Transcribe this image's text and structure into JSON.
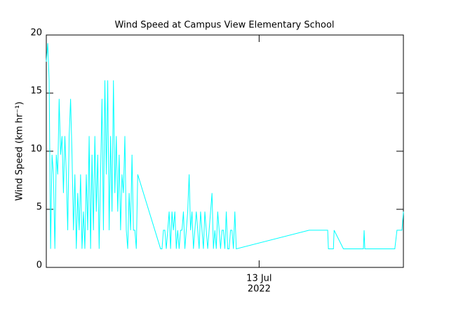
{
  "chart_data": {
    "type": "line",
    "title": "Wind Speed at Campus View Elementary School",
    "y_label": "Wind Speed (km hr⁻¹)",
    "color": "#00ffff",
    "xlim": [
      11.51,
      14.01
    ],
    "xticks": [
      {
        "value": 13,
        "label": [
          "13 Jul",
          "2022"
        ]
      }
    ],
    "ylim": [
      0,
      20
    ],
    "yticks": [
      0,
      5,
      10,
      15,
      20
    ],
    "x": [
      11.51,
      11.52,
      11.53,
      11.54,
      11.55,
      11.56,
      11.57,
      11.58,
      11.59,
      11.6,
      11.61,
      11.62,
      11.63,
      11.64,
      11.65,
      11.66,
      11.67,
      11.68,
      11.69,
      11.7,
      11.71,
      11.72,
      11.73,
      11.74,
      11.75,
      11.76,
      11.77,
      11.78,
      11.79,
      11.8,
      11.81,
      11.82,
      11.83,
      11.84,
      11.85,
      11.86,
      11.87,
      11.88,
      11.89,
      11.9,
      11.91,
      11.92,
      11.93,
      11.94,
      11.95,
      11.96,
      11.97,
      11.98,
      11.99,
      12.0,
      12.01,
      12.02,
      12.03,
      12.04,
      12.05,
      12.06,
      12.07,
      12.08,
      12.09,
      12.1,
      12.11,
      12.12,
      12.13,
      12.14,
      12.15,
      12.31,
      12.32,
      12.33,
      12.34,
      12.35,
      12.36,
      12.37,
      12.38,
      12.39,
      12.4,
      12.41,
      12.42,
      12.43,
      12.44,
      12.45,
      12.46,
      12.47,
      12.48,
      12.49,
      12.5,
      12.51,
      12.52,
      12.53,
      12.54,
      12.55,
      12.56,
      12.57,
      12.58,
      12.59,
      12.6,
      12.61,
      12.62,
      12.63,
      12.64,
      12.65,
      12.66,
      12.67,
      12.68,
      12.69,
      12.7,
      12.71,
      12.72,
      12.73,
      12.74,
      12.75,
      12.76,
      12.77,
      12.78,
      12.79,
      12.8,
      12.81,
      12.82,
      12.83,
      12.84,
      13.35,
      13.48,
      13.485,
      13.52,
      13.525,
      13.59,
      13.73,
      13.735,
      13.74,
      13.95,
      13.965,
      14.0,
      14.01
    ],
    "values": [
      17.7,
      19.3,
      16.1,
      1.6,
      9.7,
      8.0,
      1.6,
      9.7,
      8.0,
      14.5,
      9.7,
      11.3,
      6.4,
      11.3,
      8.0,
      3.2,
      11.3,
      14.5,
      9.7,
      3.2,
      8.0,
      1.6,
      6.4,
      3.2,
      8.0,
      1.6,
      4.8,
      1.6,
      8.0,
      3.2,
      11.3,
      1.6,
      9.7,
      3.2,
      11.3,
      4.8,
      9.7,
      1.6,
      8.0,
      14.5,
      3.2,
      16.1,
      8.0,
      16.1,
      3.2,
      11.3,
      4.8,
      16.1,
      6.4,
      11.3,
      4.8,
      9.7,
      3.2,
      8.0,
      6.4,
      11.3,
      3.2,
      1.6,
      6.4,
      3.2,
      9.7,
      3.2,
      3.2,
      1.6,
      8.0,
      1.6,
      1.6,
      3.2,
      3.2,
      1.6,
      3.2,
      4.8,
      1.6,
      4.8,
      3.2,
      4.8,
      1.6,
      3.2,
      1.6,
      3.2,
      3.2,
      4.8,
      1.6,
      3.2,
      4.8,
      8.0,
      3.2,
      4.8,
      1.6,
      3.2,
      4.8,
      3.2,
      1.6,
      4.8,
      3.2,
      1.6,
      4.8,
      3.2,
      1.6,
      3.2,
      4.8,
      6.4,
      1.6,
      3.2,
      1.6,
      4.8,
      3.2,
      1.6,
      3.2,
      3.2,
      1.6,
      4.8,
      1.6,
      1.6,
      3.2,
      3.2,
      1.6,
      4.8,
      1.6,
      3.2,
      3.2,
      1.6,
      1.6,
      3.2,
      1.6,
      1.6,
      3.2,
      1.6,
      1.6,
      3.2,
      3.2,
      4.8
    ]
  }
}
